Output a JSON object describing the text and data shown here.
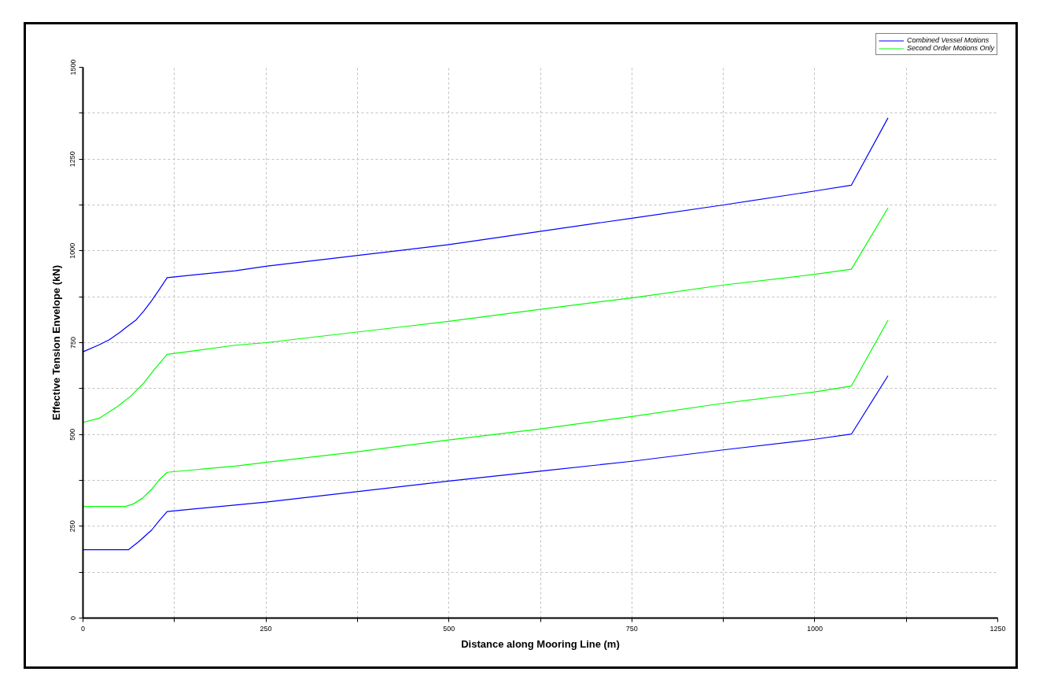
{
  "chart_data": {
    "type": "line",
    "xlabel": "Distance along Mooring Line (m)",
    "ylabel": "Effective Tension Envelope (kN)",
    "xlim": [
      0,
      1250
    ],
    "ylim": [
      0,
      1500
    ],
    "xticks": [
      0,
      {
        "value": 125,
        "label": null
      },
      250,
      {
        "value": 375,
        "label": null
      },
      500,
      {
        "value": 625,
        "label": null
      },
      750,
      {
        "value": 875,
        "label": null
      },
      1000,
      {
        "value": 1125,
        "label": null
      },
      1250
    ],
    "yticks": [
      0,
      {
        "value": 125,
        "label": null
      },
      250,
      {
        "value": 375,
        "label": null
      },
      500,
      {
        "value": 625,
        "label": null
      },
      750,
      {
        "value": 875,
        "label": null
      },
      1000,
      {
        "value": 1125,
        "label": null
      },
      1250,
      {
        "value": 1375,
        "label": null
      },
      1500
    ],
    "grid": true,
    "legend": "top right",
    "series": [
      {
        "name": "Combined Vessel Motions",
        "color": "#0000ff",
        "x": [
          0,
          22,
          36,
          51,
          58,
          72,
          83,
          94,
          104,
          115,
          208,
          250,
          500,
          750,
          875,
          1000,
          1050,
          1100
        ],
        "values": [
          725,
          744,
          758,
          779,
          790,
          811,
          836,
          865,
          894,
          927,
          946,
          958,
          1017,
          1089,
          1125,
          1163,
          1179,
          1362
        ]
      },
      {
        "color": "#0000ff",
        "x": [
          0,
          62,
          76,
          94,
          104,
          115,
          250,
          500,
          634,
          750,
          875,
          1000,
          1050,
          1100
        ],
        "values": [
          186,
          186,
          208,
          240,
          265,
          290,
          316,
          373,
          402,
          427,
          458,
          487,
          501,
          660
        ]
      },
      {
        "name": "Second Order Motions Only",
        "color": "#00ff00",
        "x": [
          0,
          22,
          47,
          65,
          83,
          97,
          115,
          208,
          250,
          500,
          625,
          750,
          875,
          1000,
          1050,
          1100
        ],
        "values": [
          533,
          544,
          576,
          604,
          640,
          676,
          718,
          743,
          750,
          808,
          841,
          872,
          907,
          936,
          950,
          1117
        ]
      },
      {
        "color": "#00ff00",
        "x": [
          0,
          58,
          69,
          81,
          94,
          104,
          115,
          208,
          250,
          375,
          500,
          625,
          750,
          875,
          1000,
          1050,
          1100
        ],
        "values": [
          304,
          304,
          311,
          326,
          351,
          376,
          397,
          414,
          424,
          453,
          485,
          515,
          549,
          585,
          616,
          632,
          811
        ]
      }
    ]
  }
}
